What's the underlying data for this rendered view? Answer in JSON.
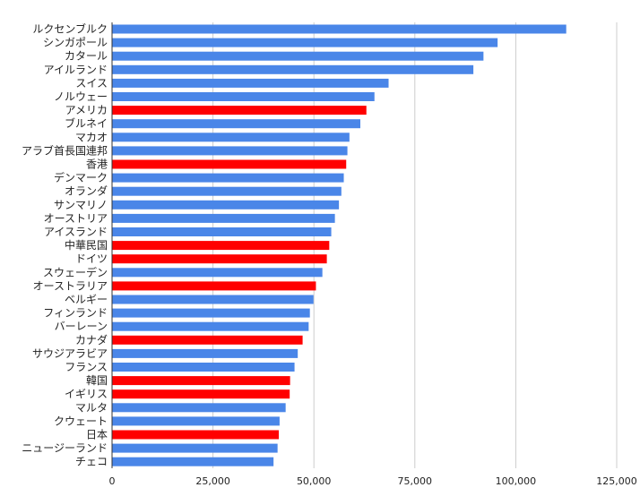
{
  "colors": {
    "default": "#4a86e8",
    "highlight": "#ff0000",
    "grid": "#cccccc",
    "axis": "#333333"
  },
  "chart_data": {
    "type": "bar",
    "orientation": "horizontal",
    "title": "",
    "xlabel": "",
    "ylabel": "",
    "xlim": [
      0,
      135000
    ],
    "x_ticks": [
      0,
      25000,
      50000,
      75000,
      100000,
      125000
    ],
    "x_tick_labels": [
      "0",
      "25,000",
      "50,000",
      "75,000",
      "100,000",
      "125,000"
    ],
    "grid": true,
    "categories": [
      "ルクセンブルク",
      "シンガポール",
      "カタール",
      "アイルランド",
      "スイス",
      "ノルウェー",
      "アメリカ",
      "ブルネイ",
      "マカオ",
      "アラブ首長国連邦",
      "香港",
      "デンマーク",
      "オランダ",
      "サンマリノ",
      "オーストリア",
      "アイスランド",
      "中華民国",
      "ドイツ",
      "スウェーデン",
      "オーストラリア",
      "ベルギー",
      "フィンランド",
      "バーレーン",
      "カナダ",
      "サウジアラビア",
      "フランス",
      "韓国",
      "イギリス",
      "マルタ",
      "クウェート",
      "日本",
      "ニュージーランド",
      "チェコ"
    ],
    "values": [
      112500,
      95500,
      92000,
      89500,
      68500,
      65000,
      63000,
      61500,
      58800,
      58300,
      58000,
      57400,
      56800,
      56200,
      55200,
      54300,
      53800,
      53200,
      52100,
      50500,
      49900,
      49000,
      48700,
      47200,
      46000,
      45200,
      44100,
      44000,
      43000,
      41500,
      41300,
      41000,
      40000
    ],
    "highlighted": [
      "アメリカ",
      "香港",
      "中華民国",
      "ドイツ",
      "オーストラリア",
      "カナダ",
      "韓国",
      "イギリス",
      "日本"
    ]
  }
}
